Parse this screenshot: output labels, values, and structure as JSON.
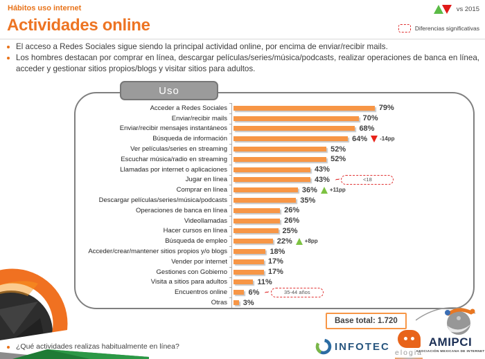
{
  "slide": {
    "kicker": "Hábitos uso internet",
    "title": "Actividades online",
    "vs_label": "vs 2015",
    "legend_label": "Diferencias significativas",
    "bullets": [
      "El acceso a Redes Sociales sigue siendo la principal actividad online, por encima de enviar/recibir mails.",
      "Los hombres destacan por comprar en línea, descargar películas/series/música/podcasts, realizar operaciones de banca en línea, acceder y gestionar sitios propios/blogs y visitar sitios para adultos."
    ],
    "section_label": "Uso",
    "base_label": "Base total: 1.720",
    "footer_question": "¿Qué actividades realizas habitualmente en línea?"
  },
  "chart_data": {
    "type": "bar",
    "orientation": "horizontal",
    "title": "Uso",
    "xlabel": "",
    "ylabel": "",
    "unit": "%",
    "xlim": [
      0,
      100
    ],
    "bar_color": "#F79646",
    "categories": [
      "Acceder a Redes Sociales",
      "Enviar/recibir mails",
      "Enviar/recibir mensajes instantáneos",
      "Búsqueda de información",
      "Ver películas/series en streaming",
      "Escuchar música/radio en streaming",
      "Llamadas por internet o aplicaciones",
      "Jugar en línea",
      "Comprar en línea",
      "Descargar películas/series/música/podcasts",
      "Operaciones de banca en línea",
      "Videollamadas",
      "Hacer cursos en línea",
      "Búsqueda de empleo",
      "Acceder/crear/mantener sitios propios y/o blogs",
      "Vender por internet",
      "Gestiones con Gobierno",
      "Visita a sitios para adultos",
      "Encuentros online",
      "Otras"
    ],
    "values": [
      79,
      70,
      68,
      64,
      52,
      52,
      43,
      43,
      36,
      35,
      26,
      26,
      25,
      22,
      18,
      17,
      17,
      11,
      6,
      3
    ],
    "annotations": {
      "3": {
        "kind": "decrease",
        "label": "-14pp"
      },
      "7": {
        "kind": "callout",
        "label": "<18"
      },
      "8": {
        "kind": "increase",
        "label": "+11pp"
      },
      "13": {
        "kind": "increase",
        "label": "+8pp"
      },
      "18": {
        "kind": "callout",
        "label": "35-44 años"
      }
    },
    "base_note": "Base total: 1.720"
  },
  "logos": {
    "infotec": "INFOTEC",
    "elogia": "elogia",
    "amipci_name": "AMIPCI",
    "amipci_sub": "ASOCIACIÓN MEXICANA DE INTERNET"
  }
}
